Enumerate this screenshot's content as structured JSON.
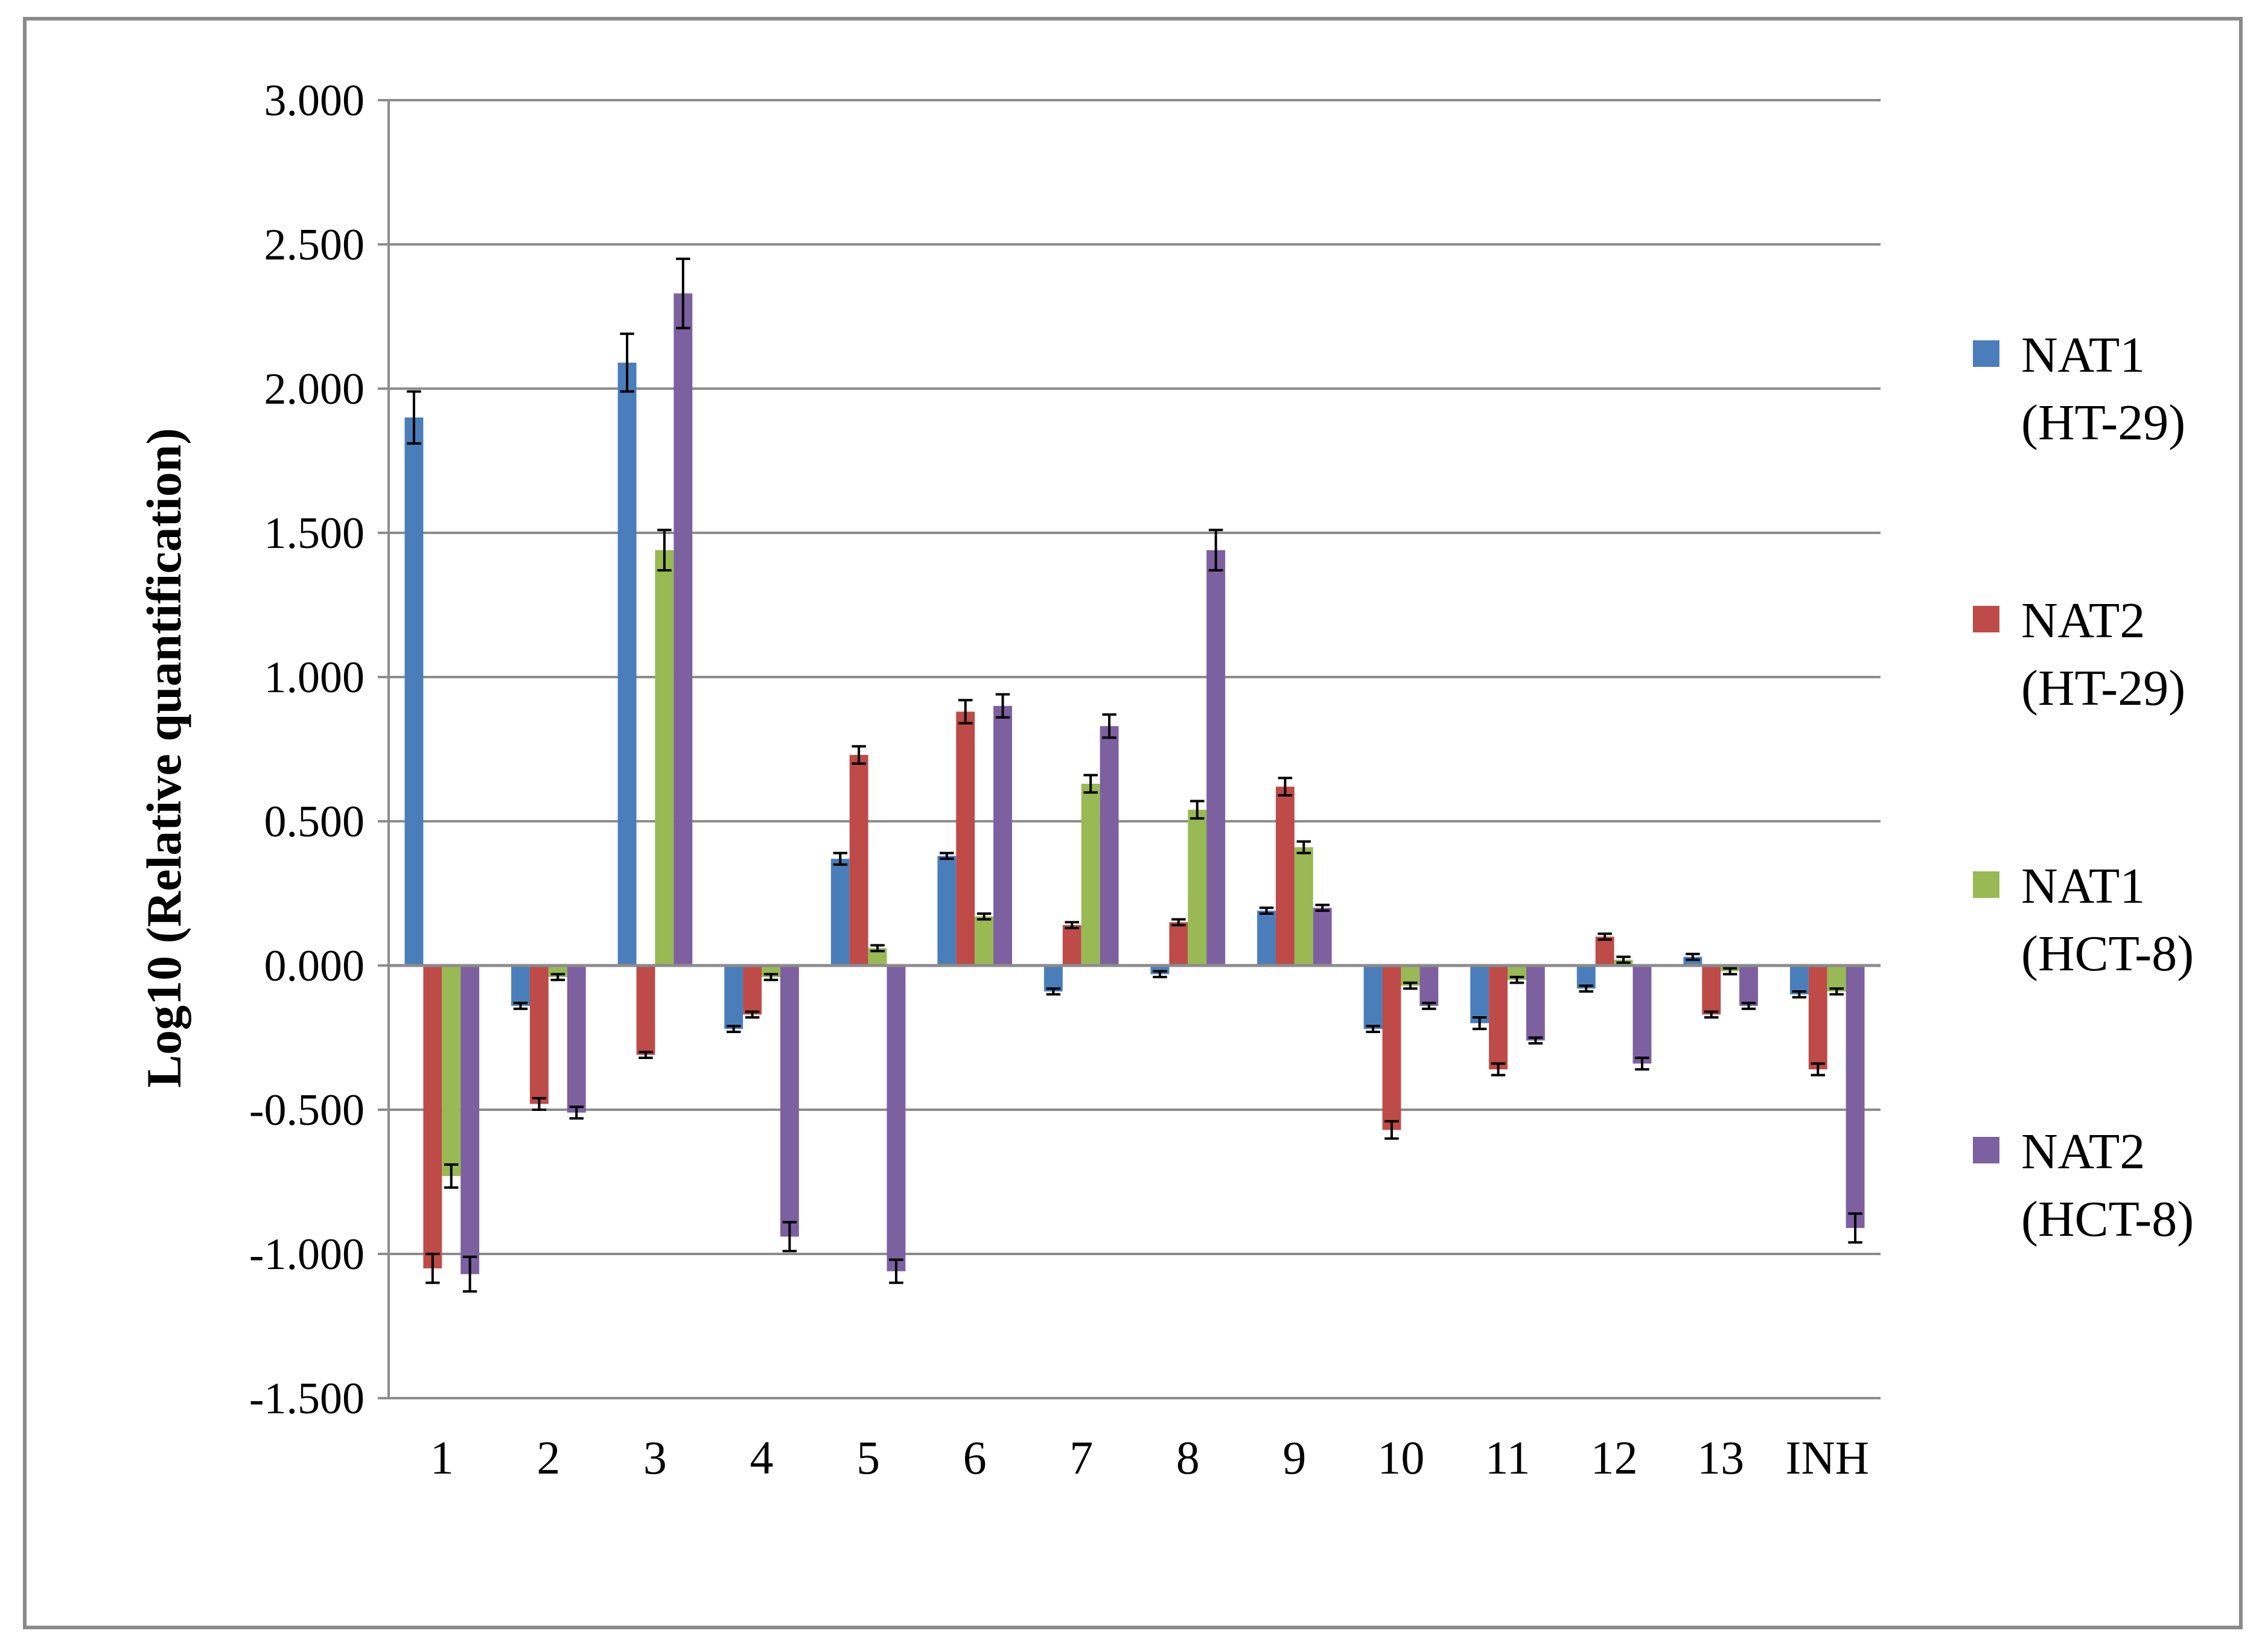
{
  "chart_data": {
    "type": "bar",
    "title": "",
    "xlabel": "",
    "ylabel": "Log10 (Relative quantification)",
    "ylim": [
      -1.5,
      3.0
    ],
    "ytick_step": 0.5,
    "ytick_labels": [
      "3.000",
      "2.500",
      "2.000",
      "1.500",
      "1.000",
      "0.500",
      "0.000",
      "-0.500",
      "-1.000",
      "-1.500"
    ],
    "grid": true,
    "legend_position": "right",
    "categories": [
      "1",
      "2",
      "3",
      "4",
      "5",
      "6",
      "7",
      "8",
      "9",
      "10",
      "11",
      "12",
      "13",
      "INH"
    ],
    "series": [
      {
        "name": "NAT1 (HT-29)",
        "legend_lines": [
          "NAT1",
          "(HT-29)"
        ],
        "color": "#4a7ebb",
        "values": [
          1.9,
          -0.14,
          2.09,
          -0.22,
          0.37,
          0.38,
          -0.09,
          -0.03,
          0.19,
          -0.22,
          -0.2,
          -0.08,
          0.03,
          -0.1
        ],
        "errors": [
          0.09,
          0.01,
          0.1,
          0.01,
          0.02,
          0.01,
          0.01,
          0.01,
          0.01,
          0.01,
          0.02,
          0.01,
          0.01,
          0.01
        ]
      },
      {
        "name": "NAT2 (HT-29)",
        "legend_lines": [
          "NAT2",
          "(HT-29)"
        ],
        "color": "#be4b48",
        "values": [
          -1.05,
          -0.48,
          -0.31,
          -0.17,
          0.73,
          0.88,
          0.14,
          0.15,
          0.62,
          -0.57,
          -0.36,
          0.1,
          -0.17,
          -0.36
        ],
        "errors": [
          0.05,
          0.02,
          0.01,
          0.01,
          0.03,
          0.04,
          0.01,
          0.01,
          0.03,
          0.03,
          0.02,
          0.01,
          0.01,
          0.02
        ]
      },
      {
        "name": "NAT1 (HCT-8)",
        "legend_lines": [
          "NAT1",
          "(HCT-8)"
        ],
        "color": "#98b954",
        "values": [
          -0.73,
          -0.04,
          1.44,
          -0.04,
          0.06,
          0.17,
          0.63,
          0.54,
          0.41,
          -0.07,
          -0.05,
          0.02,
          -0.02,
          -0.09
        ],
        "errors": [
          0.04,
          0.01,
          0.07,
          0.01,
          0.01,
          0.01,
          0.03,
          0.03,
          0.02,
          0.01,
          0.01,
          0.01,
          0.01,
          0.01
        ]
      },
      {
        "name": "NAT2 (HCT-8)",
        "legend_lines": [
          "NAT2",
          "(HCT-8)"
        ],
        "color": "#7d60a0",
        "values": [
          -1.07,
          -0.51,
          2.33,
          -0.94,
          -1.06,
          0.9,
          0.83,
          1.44,
          0.2,
          -0.14,
          -0.26,
          -0.34,
          -0.14,
          -0.91
        ],
        "errors": [
          0.06,
          0.02,
          0.12,
          0.05,
          0.04,
          0.04,
          0.04,
          0.07,
          0.01,
          0.01,
          0.01,
          0.02,
          0.01,
          0.05
        ]
      }
    ]
  }
}
